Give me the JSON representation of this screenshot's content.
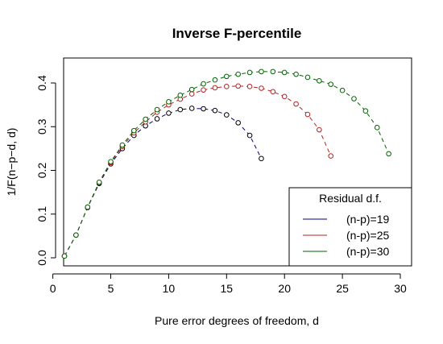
{
  "chart_data": {
    "type": "scatter",
    "title": "Inverse F-percentile",
    "xlabel": "Pure error degrees of freedom, d",
    "ylabel": "1/F(n−p−d, d)",
    "xlim": [
      0,
      30
    ],
    "ylim": [
      0,
      0.44
    ],
    "x_ticks": [
      "0",
      "5",
      "10",
      "15",
      "20",
      "25",
      "30"
    ],
    "y_ticks": [
      "0.0",
      "0.1",
      "0.2",
      "0.3",
      "0.4"
    ],
    "grid": false,
    "legend_position": "bottom-right",
    "legend_title": "Residual d.f.",
    "series": [
      {
        "name": "(n-p)=19",
        "color": "#000000",
        "line_color": "#000080",
        "x": [
          1,
          2,
          3,
          4,
          5,
          6,
          7,
          8,
          9,
          10,
          11,
          12,
          13,
          14,
          15,
          16,
          17,
          18
        ],
        "y": [
          0.004,
          0.052,
          0.115,
          0.17,
          0.215,
          0.25,
          0.28,
          0.302,
          0.318,
          0.331,
          0.339,
          0.342,
          0.341,
          0.337,
          0.327,
          0.309,
          0.28,
          0.227
        ]
      },
      {
        "name": "(n-p)=25",
        "color": "#b22222",
        "line_color": "#b22222",
        "x": [
          1,
          2,
          3,
          4,
          5,
          6,
          7,
          8,
          9,
          10,
          11,
          12,
          13,
          14,
          15,
          16,
          17,
          18,
          19,
          20,
          21,
          22,
          23,
          24
        ],
        "y": [
          0.004,
          0.052,
          0.116,
          0.172,
          0.218,
          0.255,
          0.286,
          0.311,
          0.333,
          0.35,
          0.363,
          0.375,
          0.384,
          0.389,
          0.392,
          0.393,
          0.392,
          0.388,
          0.38,
          0.369,
          0.352,
          0.328,
          0.293,
          0.233
        ]
      },
      {
        "name": "(n-p)=30",
        "color": "#006400",
        "line_color": "#006400",
        "x": [
          1,
          2,
          3,
          4,
          5,
          6,
          7,
          8,
          9,
          10,
          11,
          12,
          13,
          14,
          15,
          16,
          17,
          18,
          19,
          20,
          21,
          22,
          23,
          24,
          25,
          26,
          27,
          28,
          29
        ],
        "y": [
          0.004,
          0.052,
          0.116,
          0.173,
          0.22,
          0.258,
          0.291,
          0.317,
          0.339,
          0.357,
          0.372,
          0.385,
          0.398,
          0.407,
          0.415,
          0.42,
          0.424,
          0.426,
          0.426,
          0.424,
          0.42,
          0.413,
          0.405,
          0.397,
          0.383,
          0.364,
          0.336,
          0.298,
          0.238
        ]
      }
    ]
  }
}
